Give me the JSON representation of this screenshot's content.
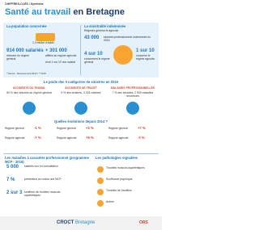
{
  "header": {
    "kicker": "CHIFFRES-CLÉS / Synthèse",
    "title_highlight": "Santé au travail",
    "title_rest": "en Bretagne"
  },
  "population": {
    "title": "La population concernée",
    "actifs": "1,3 million d'actifs",
    "rg_value": "914 000 salariés",
    "rg_note": "relevant du régime général",
    "ra_value": "+ 301 000",
    "ra_note": "affiliés au régime agricole",
    "ra_detail": "dont 1 sur 10 non salarié"
  },
  "sinistralite": {
    "title": "La sinistralité indemnisée",
    "subtitle": "Régimes général et agricole",
    "total": "43 000",
    "total_note": "sinistres professionnels indemnisés en 2016",
    "rg_share": "4 sur 10",
    "rg_share_note": "concernent le régime général",
    "ra_share": "1 sur 10",
    "ra_share_note": "concerne le régime agricole"
  },
  "source_note": "* Source : Recensement 2013 / ** 2016",
  "categories": {
    "title": "Le poids des 3 catégories de sinistres en 2016",
    "items": [
      {
        "name": "ACCIDENTS DU TRAVAIL",
        "text": "84 % des sinistres du régime général",
        "rg": "-1 %",
        "ra": "-7 %"
      },
      {
        "name": "ACCIDENTS DE TRAJET",
        "text": "9 % des sinistres, 3 225 victimes",
        "rg": "+2 %",
        "ra": "+5 %"
      },
      {
        "name": "MALADIES PROFESSIONNELLES",
        "text": "7 % des sinistres, 2 900 maladies reconnues",
        "rg": "+7 %",
        "ra": "-3 %"
      }
    ],
    "evolution_title": "Quelles évolutions depuis 2014 ?",
    "rg_label": "Régime général",
    "ra_label": "Régime agricole"
  },
  "mcp": {
    "title": "Les maladies à caractère professionnel (programme MCP - 2016)",
    "value1": "5 000",
    "note1": "salariés vus en consultation",
    "value2": "7 %",
    "note2": "présentent au moins une MCP",
    "value3": "2 sur 3",
    "note3": "souffrent de troubles musculo-squelettiques"
  },
  "pathologies": {
    "title": "Les pathologies signalées",
    "items": [
      "Troubles musculo-squelettiques",
      "Souffrance psychique",
      "Troubles de l'audition",
      "Autres"
    ]
  },
  "footer": {
    "brand": "CROCT",
    "region": "Bretagne",
    "partner": "ORS"
  }
}
